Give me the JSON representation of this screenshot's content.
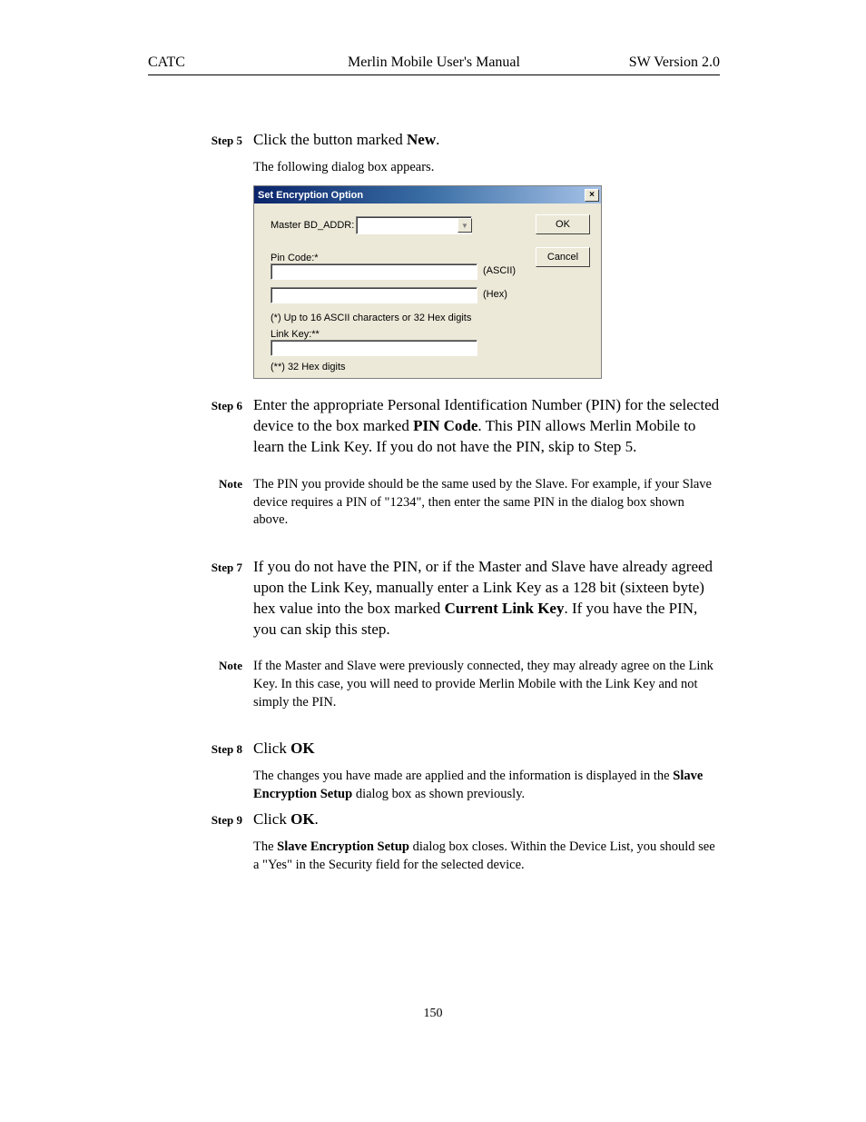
{
  "header": {
    "left": "CATC",
    "center": "Merlin Mobile User's Manual",
    "right": "SW Version 2.0"
  },
  "steps": {
    "s5": {
      "label": "Step 5",
      "text_pre": "Click the button marked ",
      "text_bold": "New",
      "text_post": ".",
      "sub": "The following dialog box appears."
    },
    "s6": {
      "label": "Step 6",
      "p1": "Enter the appropriate Personal Identification Number (PIN) for the selected device to the box marked ",
      "p1_bold": "PIN Code",
      "p1b": ".  This PIN allows Merlin Mobile to learn the Link Key.  If you do not have the PIN, skip to Step 5."
    },
    "note6": {
      "label": "Note",
      "text": "The PIN you provide should be the same used by the Slave.  For example, if your Slave device requires a PIN of \"1234\", then enter the same PIN in the dialog box shown above."
    },
    "s7": {
      "label": "Step 7",
      "p1": "If you do not have the PIN, or if the Master and Slave have already agreed upon the Link Key, manually enter a Link Key as a 128 bit (sixteen byte) hex value into the box marked ",
      "p1_bold": "Current Link Key",
      "p1b": ".  If you have the PIN, you can skip this step."
    },
    "note7": {
      "label": "Note",
      "text": "If the Master and Slave were previously connected, they may already agree on the Link Key.  In this case, you will need to provide Merlin Mobile with the Link Key and not simply the PIN."
    },
    "s8": {
      "label": "Step 8",
      "text_pre": "Click ",
      "text_bold": "OK",
      "sub_a": "The changes you have made are applied and the information is displayed in the ",
      "sub_bold": "Slave Encryption Setup",
      "sub_b": " dialog box as shown previously."
    },
    "s9": {
      "label": "Step 9",
      "text_pre": "Click ",
      "text_bold": "OK",
      "text_post": ".",
      "sub_a": "The ",
      "sub_bold": "Slave Encryption Setup",
      "sub_b": " dialog box closes.  Within the Device List, you should see a \"Yes\" in the Security field for the selected device."
    }
  },
  "dialog": {
    "title": "Set Encryption Option",
    "lbl_master": "Master BD_ADDR:",
    "lbl_pin": "Pin Code:*",
    "lbl_ascii": "(ASCII)",
    "lbl_hex": "(Hex)",
    "lbl_note1": "(*) Up to 16 ASCII characters or 32 Hex digits",
    "lbl_linkkey": "Link Key:**",
    "lbl_note2": "(**) 32 Hex digits",
    "btn_ok": "OK",
    "btn_cancel": "Cancel",
    "close": "×",
    "combo_arrow": "▼"
  },
  "pagenum": "150",
  "layout": {
    "pagenum_top": 1108
  }
}
